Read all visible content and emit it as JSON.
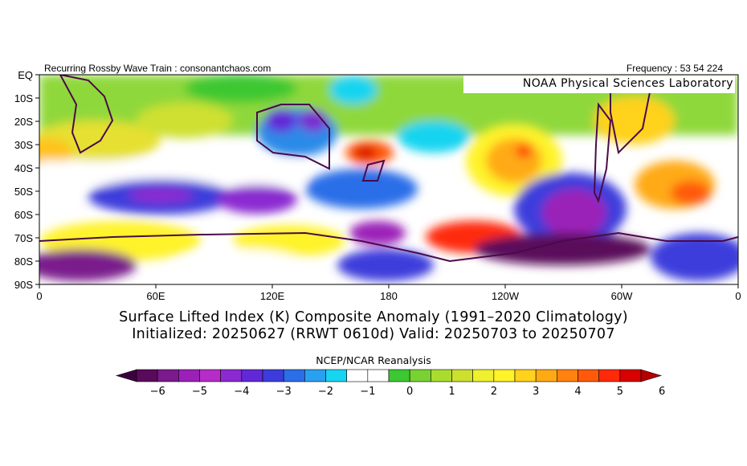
{
  "header": {
    "left_text": "Recurring Rossby Wave Train : consonantchaos.com",
    "right_text": "Frequency : 53 54 224"
  },
  "map": {
    "lab_label": "NOAA Physical Sciences Laboratory",
    "lat_labels": [
      "EQ",
      "10S",
      "20S",
      "30S",
      "40S",
      "50S",
      "60S",
      "70S",
      "80S",
      "90S"
    ],
    "lon_labels": [
      "0",
      "60E",
      "120E",
      "180",
      "120W",
      "60W",
      "0"
    ]
  },
  "title": {
    "line1": "Surface Lifted Index (K) Composite Anomaly (1991–2020 Climatology)",
    "line2": "Initialized: 20250627 (RRWT 0610d) Valid: 20250703 to 20250707"
  },
  "colorbar": {
    "title": "NCEP/NCAR Reanalysis",
    "tick_labels": [
      "−6",
      "−5",
      "−4",
      "−3",
      "−2",
      "−1",
      "0",
      "1",
      "2",
      "3",
      "4",
      "5",
      "6"
    ],
    "colors": [
      "#5a0a5a",
      "#7a1a8c",
      "#9b20b8",
      "#b52cc8",
      "#8a2ad0",
      "#6228d8",
      "#3c3cdc",
      "#2a6ee8",
      "#2aa0f0",
      "#18d4f0",
      "#ffffff",
      "#ffffff",
      "#3cc832",
      "#7ad232",
      "#aadc30",
      "#cde030",
      "#eef030",
      "#fff32a",
      "#ffd21e",
      "#ffaa14",
      "#ff8210",
      "#ff5a0a",
      "#ff2a0a",
      "#d80000"
    ],
    "min_end_color": "#3a0040",
    "max_end_color": "#b40000"
  }
}
